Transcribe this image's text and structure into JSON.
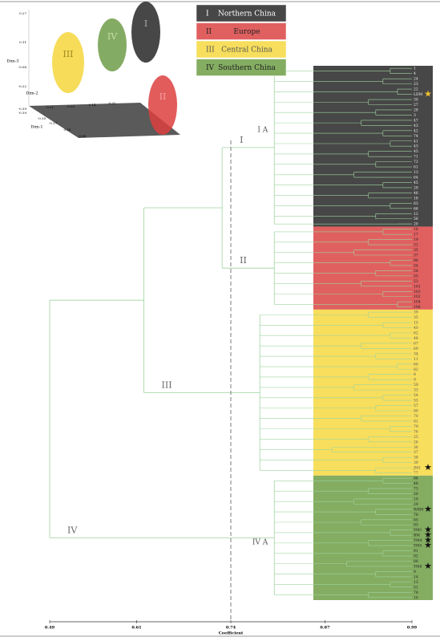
{
  "chart_data": {
    "type": "dendrogram",
    "x_label": "Coefficient",
    "xlim": [
      0.49,
      0.99
    ],
    "xticks": [
      0.49,
      0.61,
      0.74,
      0.87,
      0.99
    ],
    "threshold": 0.74,
    "line_color": "#9fd49f",
    "clusters": [
      {
        "name": "I",
        "region": "Northern China",
        "color": "#474747",
        "leaf_text_color": "#eeeeee",
        "root": 0.8,
        "sub_label": "I A",
        "leaves": [
          "1",
          "4",
          "24",
          "23",
          "22",
          "LDM",
          "30",
          "27",
          "28",
          "3",
          "47",
          "43",
          "42",
          "74",
          "41",
          "43",
          "45",
          "71",
          "72",
          "61",
          "13",
          "64",
          "45",
          "29",
          "46",
          "18",
          "63",
          "66",
          "12",
          "56",
          "20"
        ],
        "pair_joins": [
          0.96,
          0.95,
          0.97,
          0.93,
          0.94,
          0.92,
          0.95,
          0.96,
          0.93,
          0.94,
          0.91,
          0.95,
          0.93,
          0.96,
          0.94,
          0.97
        ],
        "stars": [
          {
            "index": 5,
            "color": "#f2c12e"
          }
        ]
      },
      {
        "name": "II",
        "region": "Europe",
        "color": "#e06060",
        "leaf_text_color": "#222222",
        "root": 0.8,
        "leaves": [
          "16",
          "17",
          "19",
          "31",
          "35",
          "37",
          "96",
          "54",
          "58",
          "55",
          "53",
          "101",
          "103",
          "102",
          "104",
          "106"
        ],
        "pair_joins": [
          0.95,
          0.93,
          0.91,
          0.96,
          0.94,
          0.92,
          0.95,
          0.97
        ],
        "stars": []
      },
      {
        "name": "III",
        "region": "Central China",
        "color": "#f7de5c",
        "leaf_text_color": "#555555",
        "root": 0.78,
        "leaves": [
          "39",
          "35",
          "15",
          "40",
          "62",
          "48",
          "67",
          "69",
          "34",
          "11",
          "60",
          "82",
          "8",
          "9",
          "59",
          "33",
          "54",
          "55",
          "57",
          "80",
          "70",
          "81",
          "79",
          "76",
          "25",
          "26",
          "36",
          "37",
          "38",
          "39",
          "JM1",
          "77"
        ],
        "pair_joins": [
          0.93,
          0.95,
          0.96,
          0.92,
          0.94,
          0.97,
          0.93,
          0.91,
          0.95,
          0.94,
          0.92,
          0.96,
          0.93,
          0.88,
          0.95,
          0.94
        ],
        "stars": [
          {
            "index": 30,
            "color": "#111111"
          }
        ]
      },
      {
        "name": "IV",
        "region": "Southern China",
        "color": "#84ad62",
        "leaf_text_color": "#222222",
        "root": 0.8,
        "sub_label": "IV A",
        "leaves": [
          "86",
          "48",
          "73",
          "20",
          "19",
          "29",
          "WBM",
          "78",
          "85",
          "83",
          "YM1",
          "BM",
          "YM4",
          "YM5",
          "91",
          "92",
          "88",
          "YM6",
          "9",
          "14",
          "13",
          "51",
          "78",
          "10"
        ],
        "pair_joins": [
          0.95,
          0.93,
          0.91,
          0.94,
          0.92,
          0.96,
          0.93,
          0.95,
          0.9,
          0.94,
          0.96,
          0.93
        ],
        "stars": [
          {
            "index": 6,
            "color": "#111111"
          },
          {
            "index": 10,
            "color": "#111111"
          },
          {
            "index": 11,
            "color": "#111111"
          },
          {
            "index": 12,
            "color": "#111111"
          },
          {
            "index": 13,
            "color": "#111111"
          },
          {
            "index": 17,
            "color": "#111111"
          }
        ]
      }
    ],
    "merges": [
      {
        "clusters": [
          0,
          1
        ],
        "coef": 0.728
      },
      {
        "clusters": [
          0,
          1,
          2
        ],
        "coef": 0.62
      },
      {
        "clusters": [
          0,
          1,
          2,
          3
        ],
        "coef": 0.49
      }
    ]
  },
  "inset": {
    "dim3_label": "Dim-3",
    "dim2_label": "Dim-2",
    "dim1_label": "Dim-1",
    "dim3_ticks": [
      "0.27",
      "0.11",
      "-0.06",
      "-0.22",
      "-0.39"
    ],
    "dim2_ticks": [
      "-0.39",
      "-0.21",
      "-0.03",
      "0.14",
      "0.32"
    ],
    "dim1_ticks": [
      "-0.35",
      "-0.17",
      "0.18",
      "0.48"
    ],
    "groups": [
      "III",
      "IV",
      "I",
      "II"
    ]
  }
}
